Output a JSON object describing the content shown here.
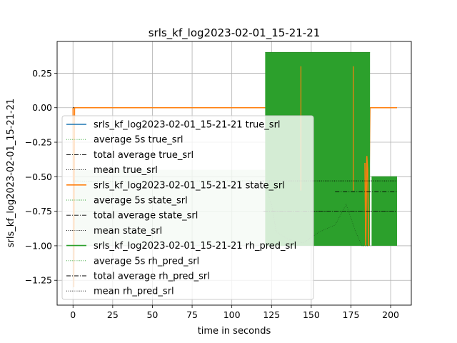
{
  "chart_data": {
    "type": "line",
    "title": "srls_kf_log2023-02-01_15-21-21",
    "xlabel": "time in seconds",
    "ylabel": "srls_kf_log2023-02-01_15-21-21",
    "xlim": [
      -10,
      213
    ],
    "ylim": [
      -1.43,
      0.48
    ],
    "xticks": [
      0,
      25,
      50,
      75,
      100,
      125,
      150,
      175,
      200
    ],
    "yticks": [
      0.25,
      0.0,
      -0.25,
      -0.5,
      -0.75,
      -1.0,
      -1.25
    ],
    "ytick_labels": [
      "0.25",
      "0.00",
      "−0.25",
      "−0.50",
      "−0.75",
      "−1.00",
      "−1.25"
    ],
    "grid": true,
    "legend_placement": "lower-left",
    "colors": {
      "blue": "#1f77b4",
      "orange": "#ff7f0e",
      "green": "#2ca02c",
      "black": "#000000"
    },
    "legend": [
      {
        "label": "srls_kf_log2023-02-01_15-21-21 true_srl",
        "color": "#1f77b4",
        "style": "solid"
      },
      {
        "label": "average 5s true_srl",
        "color": "#2ca02c",
        "style": "dotted"
      },
      {
        "label": "total average true_srl",
        "color": "#000000",
        "style": "dashdot"
      },
      {
        "label": "mean true_srl",
        "color": "#000000",
        "style": "dotted"
      },
      {
        "label": "srls_kf_log2023-02-01_15-21-21 state_srl",
        "color": "#ff7f0e",
        "style": "solid"
      },
      {
        "label": "average 5s state_srl",
        "color": "#2ca02c",
        "style": "dotted"
      },
      {
        "label": "total average state_srl",
        "color": "#000000",
        "style": "dashdot"
      },
      {
        "label": "mean state_srl",
        "color": "#000000",
        "style": "dotted"
      },
      {
        "label": "srls_kf_log2023-02-01_15-21-21 rh_pred_srl",
        "color": "#2ca02c",
        "style": "solid"
      },
      {
        "label": "average 5s rh_pred_srl",
        "color": "#2ca02c",
        "style": "dotted"
      },
      {
        "label": "total average rh_pred_srl",
        "color": "#000000",
        "style": "dashdot"
      },
      {
        "label": "mean rh_pred_srl",
        "color": "#000000",
        "style": "dotted"
      }
    ],
    "series": [
      {
        "name": "srls_kf_log2023-02-01_15-21-21 true_srl",
        "x": [
          0,
          204
        ],
        "y": [
          0.0,
          0.0
        ]
      },
      {
        "name": "total average true_srl",
        "x": [
          0,
          204
        ],
        "y": [
          0.0,
          0.0
        ]
      },
      {
        "name": "mean true_srl",
        "x": [
          0,
          204
        ],
        "y": [
          0.0,
          0.0
        ]
      },
      {
        "name": "srls_kf_log2023-02-01_15-21-21 state_srl",
        "x": [
          0,
          0.5,
          1,
          143,
          143.5,
          144,
          176,
          176.5,
          177,
          184,
          184.5,
          185,
          185.5,
          186,
          187,
          204
        ],
        "y": [
          0.0,
          -1.3,
          0.0,
          0.0,
          -0.6,
          0.0,
          0.0,
          -0.6,
          0.0,
          0.0,
          -1.0,
          -0.35,
          -0.4,
          -1.0,
          0.0,
          0.0
        ]
      },
      {
        "name": "total average state_srl",
        "x": [
          120,
          204
        ],
        "y": [
          -0.75,
          -0.75
        ]
      },
      {
        "name": "mean state_srl",
        "x": [
          120,
          204
        ],
        "y": [
          -0.75,
          -0.75
        ]
      },
      {
        "name": "srls_kf_log2023-02-01_15-21-21 rh_pred_srl",
        "band_before": {
          "x": [
            0,
            121
          ],
          "upper": -0.45,
          "lower": -1.0
        },
        "band_after": {
          "x": [
            121,
            187
          ],
          "upper": 0.4,
          "lower": -1.0
        },
        "band_tail": {
          "x": [
            188,
            204
          ],
          "upper": -0.5,
          "lower": -1.0
        }
      },
      {
        "name": "average 5s rh_pred_srl",
        "x": [
          0,
          40,
          80,
          110,
          120,
          125,
          128,
          135,
          145,
          155,
          165,
          172,
          178,
          182,
          186
        ],
        "y": [
          -0.53,
          -0.54,
          -0.53,
          -0.53,
          -0.53,
          -0.7,
          -0.9,
          -0.95,
          -0.98,
          -0.9,
          -0.85,
          -0.7,
          -0.9,
          -1.0,
          -1.0
        ]
      },
      {
        "name": "total average rh_pred_srl",
        "x": [
          165,
          204
        ],
        "y": [
          -0.61,
          -0.61
        ]
      },
      {
        "name": "mean rh_pred_srl",
        "x": [
          120,
          204
        ],
        "y": [
          -0.53,
          -0.53
        ]
      }
    ]
  }
}
